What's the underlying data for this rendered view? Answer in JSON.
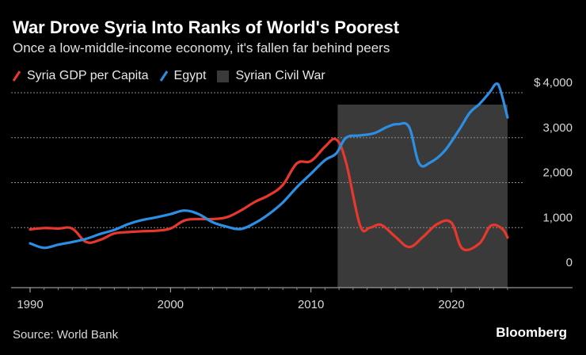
{
  "colors": {
    "background": "#000000",
    "syria": "#e8382e",
    "egypt": "#2d8fe3",
    "civil_war": "#3a3a3a",
    "grid": "#8a8a8a"
  },
  "footer": {
    "source": "Source: World Bank",
    "brand": "Bloomberg"
  },
  "chart_data": {
    "type": "line",
    "title": "War Drove Syria Into Ranks of World's Poorest",
    "subtitle": "Once a low-middle-income economy, it's fallen far behind peers",
    "xlabel": "",
    "ylabel": "",
    "xlim": [
      1989.5,
      2030.0
    ],
    "ylim": [
      -250,
      4000
    ],
    "x_ticks": [
      1990,
      2000,
      2010,
      2020
    ],
    "x_tick_labels": [
      "1990",
      "2000",
      "2010",
      "2020"
    ],
    "y_ticks": [
      0,
      1000,
      2000,
      3000,
      4000
    ],
    "y_tick_labels": [
      "0",
      "1,000",
      "2,000",
      "3,000",
      "$ 4,000"
    ],
    "grid": true,
    "legend_position": "top-left",
    "legend": [
      "Syria GDP per Capita",
      "Egypt",
      "Syrian Civil War"
    ],
    "shaded_region": {
      "name": "Syrian Civil War",
      "start": 2011.9,
      "end": 2024.0
    },
    "series": [
      {
        "name": "Syria GDP per Capita",
        "color_key": "syria",
        "points": [
          [
            1990,
            960
          ],
          [
            1991,
            990
          ],
          [
            1992,
            980
          ],
          [
            1993,
            980
          ],
          [
            1994,
            680
          ],
          [
            1995,
            730
          ],
          [
            1996,
            870
          ],
          [
            1997,
            900
          ],
          [
            1998,
            920
          ],
          [
            1999,
            930
          ],
          [
            2000,
            980
          ],
          [
            2001,
            1160
          ],
          [
            2002,
            1190
          ],
          [
            2003,
            1190
          ],
          [
            2004,
            1230
          ],
          [
            2005,
            1380
          ],
          [
            2006,
            1570
          ],
          [
            2007,
            1720
          ],
          [
            2008,
            1950
          ],
          [
            2009,
            2430
          ],
          [
            2010,
            2480
          ],
          [
            2011,
            2800
          ],
          [
            2011.8,
            2960
          ],
          [
            2012.5,
            2450
          ],
          [
            2013.5,
            1050
          ],
          [
            2014.2,
            1000
          ],
          [
            2015,
            1060
          ],
          [
            2016,
            800
          ],
          [
            2017,
            570
          ],
          [
            2018,
            800
          ],
          [
            2019,
            1080
          ],
          [
            2020,
            1110
          ],
          [
            2020.8,
            530
          ],
          [
            2022,
            650
          ],
          [
            2022.8,
            1040
          ],
          [
            2023.6,
            980
          ],
          [
            2024,
            780
          ]
        ]
      },
      {
        "name": "Egypt",
        "color_key": "egypt",
        "points": [
          [
            1990,
            650
          ],
          [
            1991,
            550
          ],
          [
            1992,
            620
          ],
          [
            1993,
            680
          ],
          [
            1994,
            750
          ],
          [
            1995,
            860
          ],
          [
            1996,
            950
          ],
          [
            1997,
            1080
          ],
          [
            1998,
            1170
          ],
          [
            1999,
            1230
          ],
          [
            2000,
            1300
          ],
          [
            2001,
            1380
          ],
          [
            2002,
            1300
          ],
          [
            2003,
            1120
          ],
          [
            2004,
            1020
          ],
          [
            2005,
            970
          ],
          [
            2006,
            1100
          ],
          [
            2007,
            1300
          ],
          [
            2008,
            1560
          ],
          [
            2009,
            1900
          ],
          [
            2010,
            2200
          ],
          [
            2011,
            2500
          ],
          [
            2011.8,
            2650
          ],
          [
            2012.5,
            3000
          ],
          [
            2013.5,
            3050
          ],
          [
            2014.5,
            3100
          ],
          [
            2015.5,
            3250
          ],
          [
            2016.2,
            3300
          ],
          [
            2017,
            3230
          ],
          [
            2017.7,
            2430
          ],
          [
            2018.5,
            2450
          ],
          [
            2019.5,
            2700
          ],
          [
            2020.5,
            3150
          ],
          [
            2021.3,
            3550
          ],
          [
            2022,
            3750
          ],
          [
            2022.7,
            4000
          ],
          [
            2023.2,
            4200
          ],
          [
            2023.5,
            4050
          ],
          [
            2024,
            3450
          ]
        ]
      }
    ]
  }
}
